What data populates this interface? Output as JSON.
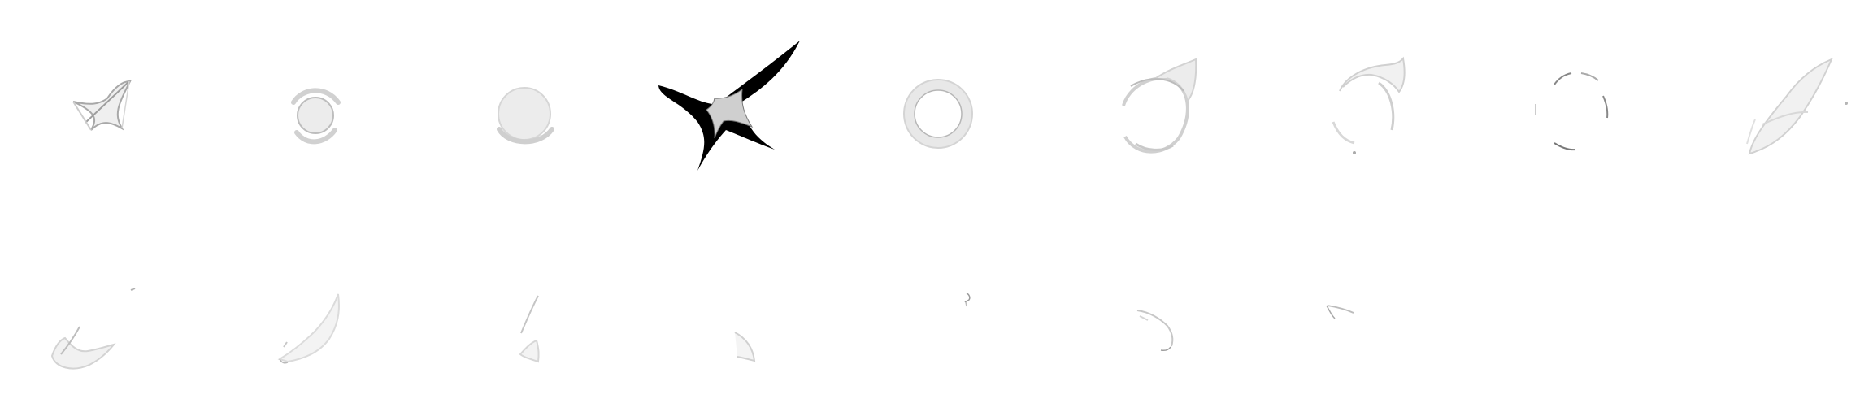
{
  "sprite_sheet": {
    "background": "#ffffff",
    "palette": {
      "black": "#000000",
      "gray": "#cfcfcf",
      "light_gray": "#ececec",
      "outline": "#9a9a9a"
    },
    "rows": [
      {
        "frames": [
          "spark-star-icon",
          "ring-orb-icon",
          "filled-orb-icon",
          "black-star-icon",
          "thick-ring-icon",
          "swirl-ring-icon",
          "swirl-fragment-icon",
          "dashed-ring-icon",
          "swoosh-icon"
        ]
      },
      {
        "frames": [
          "swoosh-fade-1-icon",
          "swoosh-fade-2-icon",
          "swoosh-fade-3-icon",
          "swoosh-fade-4-icon",
          "swoosh-fade-5-icon",
          "swoosh-fade-6-icon",
          "swoosh-fade-7-icon"
        ]
      }
    ]
  }
}
